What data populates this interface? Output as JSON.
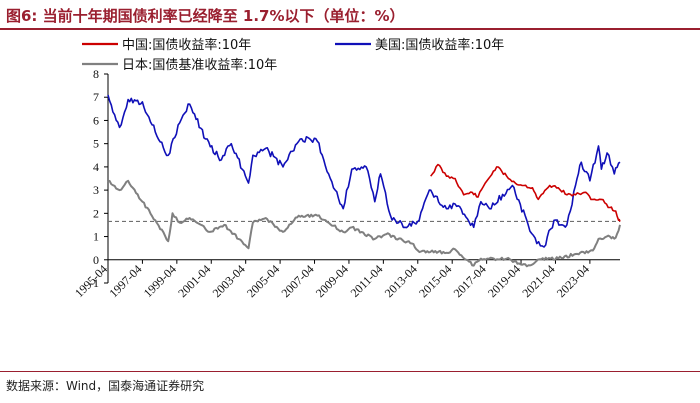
{
  "title": "图6:  当前十年期国债利率已经降至 1.7%以下（单位：%）",
  "source": "数据来源：Wind，国泰海通证券研究",
  "colors": {
    "cn": "#cc0000",
    "us": "#1010b8",
    "jp": "#808080",
    "accent": "#9a1f2f",
    "ref": "#707070"
  },
  "chart_data": {
    "type": "line",
    "title": "",
    "xlabel": "",
    "ylabel": "",
    "ylim": [
      -1,
      8
    ],
    "yticks": [
      -1,
      0,
      1,
      2,
      3,
      4,
      5,
      6,
      7,
      8
    ],
    "ytick_labels": [
      "-1",
      "0",
      "1",
      "2",
      "3",
      "4",
      "5",
      "6",
      "7",
      "8"
    ],
    "xlim": [
      "1995-04",
      "2025-01"
    ],
    "xtick_labels": [
      "1995-04",
      "1997-04",
      "1999-04",
      "2001-04",
      "2003-04",
      "2005-04",
      "2007-04",
      "2009-04",
      "2011-04",
      "2013-04",
      "2015-04",
      "2017-04",
      "2019-04",
      "2021-04",
      "2023-04"
    ],
    "grid": false,
    "legend_position": "top",
    "reference_line": {
      "y": 1.65,
      "style": "dashed"
    },
    "series": [
      {
        "name": "中国:国债收益率:10年",
        "color": "#cc0000",
        "points": [
          [
            "2014-01",
            3.6
          ],
          [
            "2014-06",
            4.1
          ],
          [
            "2014-12",
            3.6
          ],
          [
            "2015-06",
            3.5
          ],
          [
            "2015-12",
            2.8
          ],
          [
            "2016-06",
            2.9
          ],
          [
            "2016-10",
            2.7
          ],
          [
            "2017-03",
            3.3
          ],
          [
            "2017-11",
            4.0
          ],
          [
            "2018-06",
            3.6
          ],
          [
            "2018-12",
            3.3
          ],
          [
            "2019-06",
            3.2
          ],
          [
            "2019-12",
            3.1
          ],
          [
            "2020-04",
            2.6
          ],
          [
            "2020-12",
            3.2
          ],
          [
            "2021-06",
            3.1
          ],
          [
            "2021-12",
            2.8
          ],
          [
            "2022-06",
            2.8
          ],
          [
            "2022-12",
            2.9
          ],
          [
            "2023-06",
            2.6
          ],
          [
            "2023-12",
            2.6
          ],
          [
            "2024-06",
            2.25
          ],
          [
            "2024-10",
            2.1
          ],
          [
            "2024-12",
            1.7
          ],
          [
            "2025-01",
            1.65
          ]
        ]
      },
      {
        "name": "美国:国债收益率:10年",
        "color": "#1010b8",
        "points": [
          [
            "1995-04",
            7.1
          ],
          [
            "1995-12",
            5.7
          ],
          [
            "1996-06",
            6.9
          ],
          [
            "1997-04",
            6.8
          ],
          [
            "1998-01",
            5.5
          ],
          [
            "1998-10",
            4.5
          ],
          [
            "1999-06",
            5.9
          ],
          [
            "2000-01",
            6.7
          ],
          [
            "2000-12",
            5.2
          ],
          [
            "2001-11",
            4.3
          ],
          [
            "2002-06",
            5.0
          ],
          [
            "2003-06",
            3.3
          ],
          [
            "2003-09",
            4.5
          ],
          [
            "2004-06",
            4.8
          ],
          [
            "2005-06",
            4.0
          ],
          [
            "2006-06",
            5.2
          ],
          [
            "2007-06",
            5.1
          ],
          [
            "2008-03",
            3.5
          ],
          [
            "2008-12",
            2.2
          ],
          [
            "2009-06",
            3.9
          ],
          [
            "2010-04",
            4.0
          ],
          [
            "2010-10",
            2.5
          ],
          [
            "2011-02",
            3.7
          ],
          [
            "2011-09",
            1.9
          ],
          [
            "2012-07",
            1.4
          ],
          [
            "2013-05",
            1.7
          ],
          [
            "2013-12",
            3.0
          ],
          [
            "2014-12",
            2.2
          ],
          [
            "2015-06",
            2.4
          ],
          [
            "2016-07",
            1.4
          ],
          [
            "2016-12",
            2.5
          ],
          [
            "2017-06",
            2.2
          ],
          [
            "2018-10",
            3.2
          ],
          [
            "2019-09",
            1.5
          ],
          [
            "2020-03",
            0.7
          ],
          [
            "2020-08",
            0.55
          ],
          [
            "2021-03",
            1.7
          ],
          [
            "2021-12",
            1.5
          ],
          [
            "2022-06",
            3.2
          ],
          [
            "2022-10",
            4.2
          ],
          [
            "2023-04",
            3.4
          ],
          [
            "2023-10",
            4.9
          ],
          [
            "2023-12",
            3.9
          ],
          [
            "2024-04",
            4.6
          ],
          [
            "2024-09",
            3.7
          ],
          [
            "2025-01",
            4.2
          ]
        ]
      },
      {
        "name": "日本:国债基准收益率:10年",
        "color": "#808080",
        "points": [
          [
            "1995-04",
            3.4
          ],
          [
            "1995-12",
            3.0
          ],
          [
            "1996-06",
            3.4
          ],
          [
            "1997-04",
            2.5
          ],
          [
            "1998-01",
            1.7
          ],
          [
            "1998-10",
            0.8
          ],
          [
            "1999-01",
            2.0
          ],
          [
            "1999-06",
            1.6
          ],
          [
            "2000-01",
            1.8
          ],
          [
            "2001-03",
            1.2
          ],
          [
            "2002-01",
            1.5
          ],
          [
            "2003-06",
            0.5
          ],
          [
            "2003-09",
            1.6
          ],
          [
            "2004-06",
            1.8
          ],
          [
            "2005-06",
            1.2
          ],
          [
            "2006-05",
            1.9
          ],
          [
            "2007-06",
            1.9
          ],
          [
            "2008-12",
            1.2
          ],
          [
            "2009-06",
            1.4
          ],
          [
            "2010-10",
            0.9
          ],
          [
            "2011-06",
            1.1
          ],
          [
            "2012-12",
            0.7
          ],
          [
            "2013-04",
            0.4
          ],
          [
            "2014-12",
            0.3
          ],
          [
            "2015-06",
            0.45
          ],
          [
            "2016-07",
            -0.25
          ],
          [
            "2016-12",
            0.05
          ],
          [
            "2018-06",
            0.05
          ],
          [
            "2019-08",
            -0.28
          ],
          [
            "2020-06",
            0.02
          ],
          [
            "2021-06",
            0.05
          ],
          [
            "2022-06",
            0.25
          ],
          [
            "2023-06",
            0.4
          ],
          [
            "2023-10",
            0.9
          ],
          [
            "2024-06",
            1.0
          ],
          [
            "2024-10",
            0.95
          ],
          [
            "2025-01",
            1.5
          ]
        ]
      }
    ]
  }
}
